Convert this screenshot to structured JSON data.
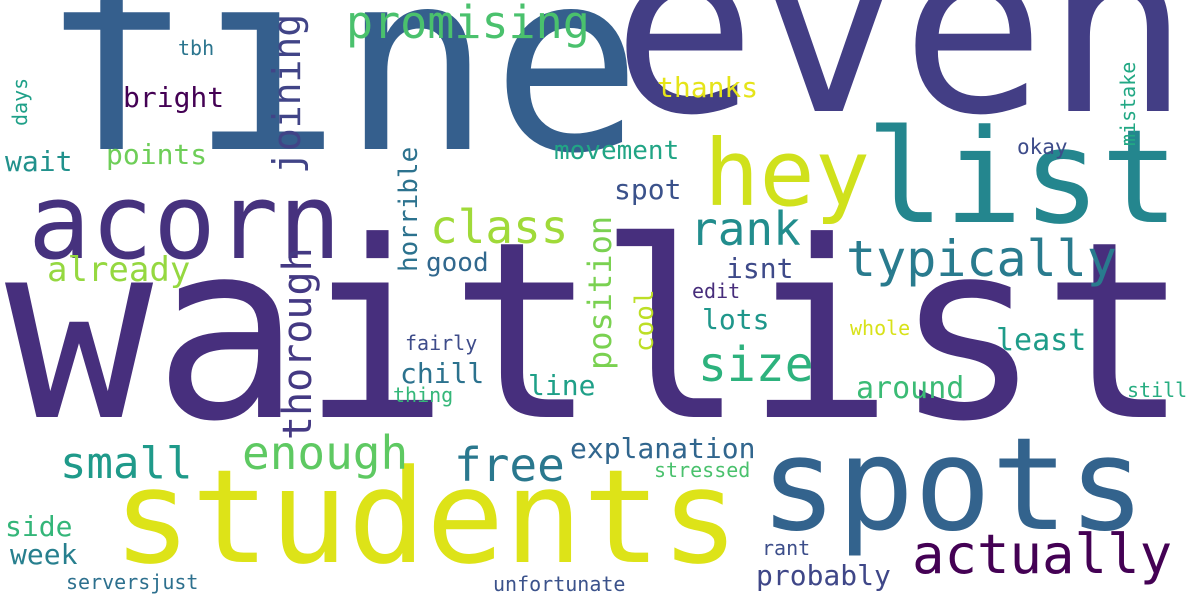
{
  "words": [
    {
      "text": "waitlist",
      "color": "#472f7d",
      "vertical": false
    },
    {
      "text": "fine",
      "color": "#355f8d",
      "vertical": false
    },
    {
      "text": "even",
      "color": "#433e85",
      "vertical": false
    },
    {
      "text": "students",
      "color": "#dde318",
      "vertical": false
    },
    {
      "text": "spots",
      "color": "#33638d",
      "vertical": false
    },
    {
      "text": "list",
      "color": "#24868e",
      "vertical": false
    },
    {
      "text": "acorn",
      "color": "#46327e",
      "vertical": false
    },
    {
      "text": "hey",
      "color": "#d0e11c",
      "vertical": false
    },
    {
      "text": "typically",
      "color": "#297b8e",
      "vertical": false
    },
    {
      "text": "actually",
      "color": "#440154",
      "vertical": false
    },
    {
      "text": "promising",
      "color": "#4ac16d",
      "vertical": false
    },
    {
      "text": "class",
      "color": "#a0da39",
      "vertical": false
    },
    {
      "text": "rank",
      "color": "#228d8d",
      "vertical": false
    },
    {
      "text": "size",
      "color": "#2db27d",
      "vertical": false
    },
    {
      "text": "enough",
      "color": "#5ec962",
      "vertical": false
    },
    {
      "text": "free",
      "color": "#2a788e",
      "vertical": false
    },
    {
      "text": "small",
      "color": "#1f9a8a",
      "vertical": false
    },
    {
      "text": "joining",
      "color": "#414487",
      "vertical": true
    },
    {
      "text": "thorough",
      "color": "#443983",
      "vertical": true
    },
    {
      "text": "position",
      "color": "#7ad151",
      "vertical": true
    },
    {
      "text": "horrible",
      "color": "#2c728e",
      "vertical": true
    },
    {
      "text": "cool",
      "color": "#bddf26",
      "vertical": true
    },
    {
      "text": "mistake",
      "color": "#22a884",
      "vertical": true
    },
    {
      "text": "days",
      "color": "#1fa088",
      "vertical": true
    },
    {
      "text": "already",
      "color": "#95d840",
      "vertical": false
    },
    {
      "text": "thanks",
      "color": "#e5e419",
      "vertical": false
    },
    {
      "text": "bright",
      "color": "#440154",
      "vertical": false
    },
    {
      "text": "points",
      "color": "#6ece58",
      "vertical": false
    },
    {
      "text": "wait",
      "color": "#21918c",
      "vertical": false
    },
    {
      "text": "movement",
      "color": "#21a585",
      "vertical": false
    },
    {
      "text": "spot",
      "color": "#3b528b",
      "vertical": false
    },
    {
      "text": "good",
      "color": "#31688e",
      "vertical": false
    },
    {
      "text": "isnt",
      "color": "#3e4a89",
      "vertical": false
    },
    {
      "text": "lots",
      "color": "#1f978b",
      "vertical": false
    },
    {
      "text": "least",
      "color": "#1e9c89",
      "vertical": false
    },
    {
      "text": "around",
      "color": "#3bbb75",
      "vertical": false
    },
    {
      "text": "chill",
      "color": "#2c728e",
      "vertical": false
    },
    {
      "text": "line",
      "color": "#1fa088",
      "vertical": false
    },
    {
      "text": "explanation",
      "color": "#31668e",
      "vertical": false
    },
    {
      "text": "probably",
      "color": "#3f4788",
      "vertical": false
    },
    {
      "text": "week",
      "color": "#277f8e",
      "vertical": false
    },
    {
      "text": "side",
      "color": "#34b679",
      "vertical": false
    },
    {
      "text": "tbh",
      "color": "#2b758e",
      "vertical": false
    },
    {
      "text": "okay",
      "color": "#3e4c8a",
      "vertical": false
    },
    {
      "text": "edit",
      "color": "#472d7b",
      "vertical": false
    },
    {
      "text": "whole",
      "color": "#d8e219",
      "vertical": false
    },
    {
      "text": "fairly",
      "color": "#3e4c8a",
      "vertical": false
    },
    {
      "text": "thing",
      "color": "#35b779",
      "vertical": false
    },
    {
      "text": "still",
      "color": "#27ad81",
      "vertical": false
    },
    {
      "text": "stressed",
      "color": "#4ac16d",
      "vertical": false
    },
    {
      "text": "rant",
      "color": "#3d4e8a",
      "vertical": false
    },
    {
      "text": "serversjust",
      "color": "#2d708e",
      "vertical": false
    },
    {
      "text": "unfortunate",
      "color": "#3b528b",
      "vertical": false
    }
  ]
}
